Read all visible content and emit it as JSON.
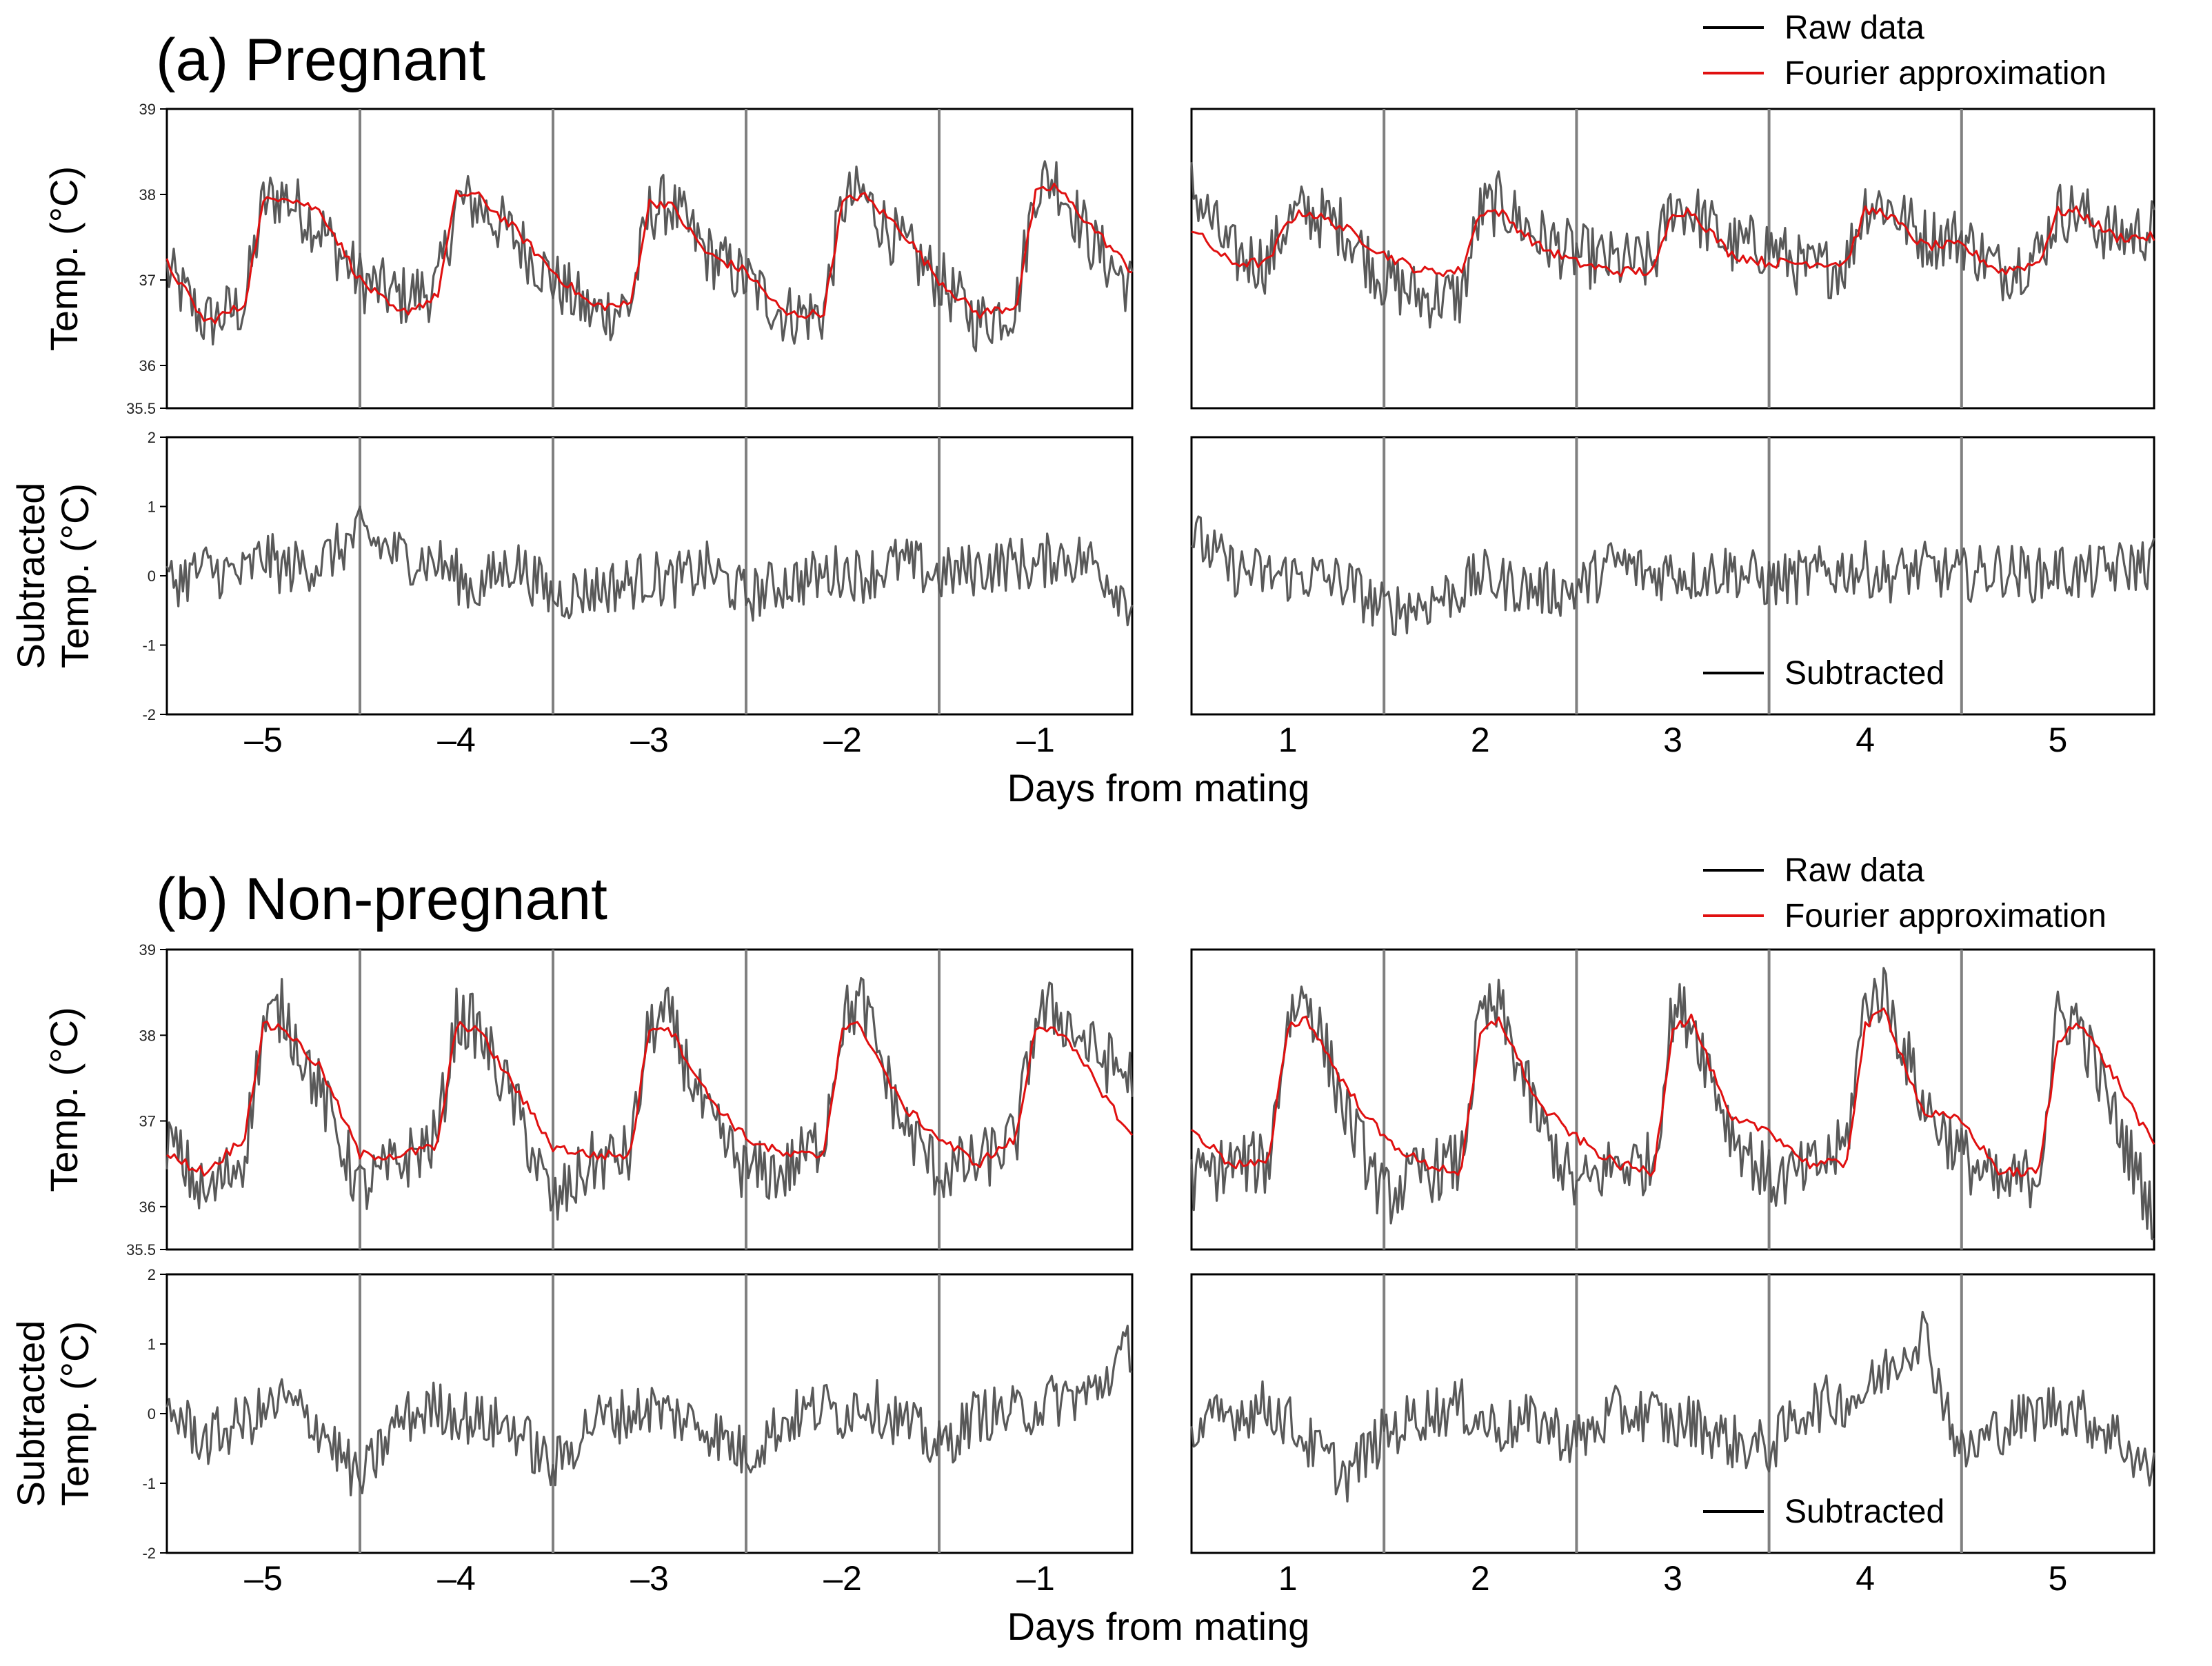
{
  "chart_data": [
    {
      "panel": "a",
      "title": "(a) Pregnant",
      "type": "line",
      "xlabel": "Days from mating",
      "x_ticks_pre": [
        "–5",
        "–4",
        "–3",
        "–2",
        "–1"
      ],
      "x_ticks_post": [
        "1",
        "2",
        "3",
        "4",
        "5"
      ],
      "legend_top": [
        "Raw data",
        "Fourier approximation"
      ],
      "legend_bottom": [
        "Subtracted"
      ],
      "legend_position": "top-right",
      "colors": {
        "raw": "#595959",
        "fourier": "#e01010",
        "subtracted": "#595959",
        "divider": "#808080"
      },
      "top": {
        "ylabel": "Temp. (°C)",
        "ylim": [
          35.5,
          39
        ],
        "yticks": [
          "35.5",
          "36",
          "37",
          "38",
          "39"
        ],
        "series": [
          {
            "name": "Raw data",
            "segment": "pre",
            "x": [
              -5.5,
              -5.3,
              -5.1,
              -5.0,
              -4.9,
              -4.7,
              -4.5,
              -4.3,
              -4.1,
              -4.0,
              -3.9,
              -3.7,
              -3.5,
              -3.3,
              -3.1,
              -3.0,
              -2.9,
              -2.7,
              -2.5,
              -2.3,
              -2.1,
              -2.0,
              -1.9,
              -1.7,
              -1.5,
              -1.3,
              -1.1,
              -1.0,
              -0.9,
              -0.7,
              -0.5
            ],
            "y": [
              37.1,
              36.5,
              36.7,
              37.9,
              38.0,
              37.6,
              37.0,
              36.8,
              36.9,
              37.9,
              37.9,
              37.5,
              37.0,
              36.6,
              36.7,
              37.8,
              37.9,
              37.3,
              37.0,
              36.6,
              36.6,
              37.9,
              38.0,
              37.4,
              37.0,
              36.5,
              36.7,
              38.1,
              38.2,
              37.4,
              36.9
            ]
          },
          {
            "name": "Fourier approximation",
            "segment": "pre",
            "x": [
              -5.5,
              -5.3,
              -5.1,
              -5.0,
              -4.9,
              -4.7,
              -4.5,
              -4.3,
              -4.1,
              -4.0,
              -3.9,
              -3.7,
              -3.5,
              -3.3,
              -3.1,
              -3.0,
              -2.9,
              -2.7,
              -2.5,
              -2.3,
              -2.1,
              -2.0,
              -1.9,
              -1.7,
              -1.5,
              -1.3,
              -1.1,
              -1.0,
              -0.9,
              -0.7,
              -0.5
            ],
            "y": [
              37.2,
              36.5,
              36.7,
              37.9,
              38.0,
              37.8,
              37.0,
              36.6,
              36.8,
              38.0,
              38.0,
              37.6,
              37.1,
              36.7,
              36.7,
              37.9,
              37.9,
              37.3,
              37.1,
              36.6,
              36.6,
              37.9,
              38.0,
              37.6,
              37.0,
              36.6,
              36.7,
              38.0,
              38.1,
              37.6,
              37.1
            ]
          },
          {
            "name": "Raw data",
            "segment": "post",
            "x": [
              0.5,
              0.7,
              0.9,
              1.0,
              1.1,
              1.3,
              1.5,
              1.7,
              1.9,
              2.0,
              2.1,
              2.3,
              2.5,
              2.7,
              2.9,
              3.0,
              3.1,
              3.3,
              3.5,
              3.7,
              3.9,
              4.0,
              4.1,
              4.3,
              4.5,
              4.7,
              4.9,
              5.0,
              5.1,
              5.3,
              5.5
            ],
            "y": [
              38.1,
              37.3,
              37.2,
              37.7,
              37.8,
              37.6,
              37.0,
              36.8,
              36.8,
              37.8,
              37.9,
              37.5,
              37.3,
              37.2,
              37.2,
              37.9,
              37.8,
              37.4,
              37.4,
              37.1,
              37.2,
              37.9,
              37.9,
              37.5,
              37.5,
              37.1,
              37.3,
              37.8,
              37.8,
              37.5,
              37.6
            ]
          },
          {
            "name": "Fourier approximation",
            "segment": "post",
            "x": [
              0.5,
              0.7,
              0.9,
              1.0,
              1.1,
              1.3,
              1.5,
              1.7,
              1.9,
              2.0,
              2.1,
              2.3,
              2.5,
              2.7,
              2.9,
              3.0,
              3.1,
              3.3,
              3.5,
              3.7,
              3.9,
              4.0,
              4.1,
              4.3,
              4.5,
              4.7,
              4.9,
              5.0,
              5.1,
              5.3,
              5.5
            ],
            "y": [
              37.6,
              37.2,
              37.2,
              37.7,
              37.8,
              37.6,
              37.3,
              37.1,
              37.1,
              37.8,
              37.8,
              37.4,
              37.2,
              37.1,
              37.1,
              37.8,
              37.8,
              37.3,
              37.2,
              37.2,
              37.2,
              37.8,
              37.8,
              37.4,
              37.4,
              37.1,
              37.2,
              37.8,
              37.8,
              37.5,
              37.5
            ]
          }
        ]
      },
      "bottom": {
        "ylabel": "Subtracted Temp. (°C)",
        "ylim": [
          -2,
          2
        ],
        "yticks": [
          "-2",
          "-1",
          "0",
          "1",
          "2"
        ],
        "series": [
          {
            "name": "Subtracted",
            "segment": "pre",
            "x": [
              -5.5,
              -5.3,
              -5.1,
              -5.0,
              -4.9,
              -4.7,
              -4.5,
              -4.3,
              -4.1,
              -4.0,
              -3.9,
              -3.7,
              -3.5,
              -3.3,
              -3.1,
              -3.0,
              -2.9,
              -2.7,
              -2.5,
              -2.3,
              -2.1,
              -2.0,
              -1.9,
              -1.7,
              -1.5,
              -1.3,
              -1.1,
              -1.0,
              -0.9,
              -0.7,
              -0.5
            ],
            "y": [
              -0.1,
              0.1,
              0.0,
              0.3,
              0.1,
              0.2,
              0.6,
              0.3,
              0.2,
              0.0,
              -0.2,
              0.2,
              -0.3,
              -0.2,
              -0.1,
              0.0,
              -0.1,
              0.1,
              -0.3,
              -0.1,
              0.0,
              0.1,
              0.0,
              0.2,
              0.0,
              0.1,
              0.2,
              0.1,
              0.3,
              0.2,
              -0.4
            ]
          }
        ]
      },
      "bottom_post": {
        "series": [
          {
            "name": "Subtracted",
            "segment": "post",
            "x": [
              0.5,
              0.7,
              0.9,
              1.0,
              1.1,
              1.3,
              1.5,
              1.7,
              1.9,
              2.0,
              2.1,
              2.3,
              2.5,
              2.7,
              2.9,
              3.0,
              3.1,
              3.3,
              3.5,
              3.7,
              3.9,
              4.0,
              4.1,
              4.3,
              4.5,
              4.7,
              4.9,
              5.0,
              5.1,
              5.3,
              5.5
            ],
            "y": [
              0.6,
              0.1,
              0.0,
              0.0,
              0.0,
              -0.1,
              -0.5,
              -0.4,
              -0.2,
              0.0,
              -0.1,
              -0.2,
              -0.2,
              0.2,
              0.0,
              0.1,
              0.0,
              0.1,
              -0.1,
              0.0,
              0.1,
              0.1,
              0.0,
              0.1,
              0.0,
              0.1,
              0.0,
              0.1,
              0.0,
              0.1,
              0.2
            ]
          }
        ]
      }
    },
    {
      "panel": "b",
      "title": "(b) Non-pregnant",
      "type": "line",
      "xlabel": "Days from mating",
      "x_ticks_pre": [
        "–5",
        "–4",
        "–3",
        "–2",
        "–1"
      ],
      "x_ticks_post": [
        "1",
        "2",
        "3",
        "4",
        "5"
      ],
      "legend_top": [
        "Raw data",
        "Fourier approximation"
      ],
      "legend_bottom": [
        "Subtracted"
      ],
      "legend_position": "top-right",
      "top": {
        "ylabel": "Temp. (°C)",
        "ylim": [
          35.5,
          39
        ],
        "yticks": [
          "35.5",
          "36",
          "37",
          "38",
          "39"
        ],
        "series": [
          {
            "name": "Raw data",
            "segment": "pre",
            "x": [
              -5.5,
              -5.3,
              -5.1,
              -5.0,
              -4.9,
              -4.7,
              -4.5,
              -4.3,
              -4.1,
              -4.0,
              -3.9,
              -3.7,
              -3.5,
              -3.3,
              -3.1,
              -3.0,
              -2.9,
              -2.7,
              -2.5,
              -2.3,
              -2.1,
              -2.0,
              -1.9,
              -1.7,
              -1.5,
              -1.3,
              -1.1,
              -1.0,
              -0.9,
              -0.7,
              -0.5
            ],
            "y": [
              36.8,
              36.1,
              36.6,
              38.1,
              38.3,
              37.3,
              36.2,
              36.5,
              36.8,
              38.2,
              38.1,
              37.2,
              36.0,
              36.5,
              36.6,
              38.1,
              38.2,
              37.0,
              36.4,
              36.4,
              36.8,
              38.2,
              38.4,
              37.0,
              36.4,
              36.5,
              36.8,
              38.2,
              38.3,
              37.8,
              37.5
            ]
          },
          {
            "name": "Fourier approximation",
            "segment": "pre",
            "x": [
              -5.5,
              -5.3,
              -5.1,
              -5.0,
              -4.9,
              -4.7,
              -4.5,
              -4.3,
              -4.1,
              -4.0,
              -3.9,
              -3.7,
              -3.5,
              -3.3,
              -3.1,
              -3.0,
              -2.9,
              -2.7,
              -2.5,
              -2.3,
              -2.1,
              -2.0,
              -1.9,
              -1.7,
              -1.5,
              -1.3,
              -1.1,
              -1.0,
              -0.9,
              -0.7,
              -0.5
            ],
            "y": [
              36.6,
              36.4,
              36.8,
              38.1,
              38.1,
              37.6,
              36.6,
              36.6,
              36.7,
              38.1,
              38.1,
              37.4,
              36.7,
              36.6,
              36.6,
              38.1,
              38.1,
              37.3,
              36.8,
              36.6,
              36.6,
              38.1,
              38.1,
              37.2,
              36.8,
              36.5,
              36.8,
              38.1,
              38.1,
              37.5,
              36.8
            ]
          },
          {
            "name": "Raw data",
            "segment": "post",
            "x": [
              0.5,
              0.7,
              0.9,
              1.0,
              1.1,
              1.3,
              1.5,
              1.7,
              1.9,
              2.0,
              2.1,
              2.3,
              2.5,
              2.7,
              2.9,
              3.0,
              3.1,
              3.3,
              3.5,
              3.7,
              3.9,
              4.0,
              4.1,
              4.3,
              4.5,
              4.7,
              4.9,
              5.0,
              5.1,
              5.3,
              5.5
            ],
            "y": [
              36.3,
              36.5,
              36.5,
              38.2,
              38.5,
              37.1,
              36.1,
              36.4,
              36.5,
              38.2,
              38.3,
              37.0,
              36.2,
              36.5,
              36.5,
              38.3,
              38.2,
              36.9,
              36.3,
              36.4,
              36.7,
              38.4,
              38.5,
              37.2,
              36.6,
              36.2,
              36.4,
              38.2,
              38.2,
              37.0,
              35.9
            ]
          },
          {
            "name": "Fourier approximation",
            "segment": "post",
            "x": [
              0.5,
              0.7,
              0.9,
              1.0,
              1.1,
              1.3,
              1.5,
              1.7,
              1.9,
              2.0,
              2.1,
              2.3,
              2.5,
              2.7,
              2.9,
              3.0,
              3.1,
              3.3,
              3.5,
              3.7,
              3.9,
              4.0,
              4.1,
              4.3,
              4.5,
              4.7,
              4.9,
              5.0,
              5.1,
              5.3,
              5.5
            ],
            "y": [
              36.9,
              36.5,
              36.5,
              38.1,
              38.2,
              37.4,
              36.8,
              36.5,
              36.4,
              38.0,
              38.2,
              37.2,
              36.8,
              36.5,
              36.4,
              38.1,
              38.2,
              37.0,
              36.9,
              36.5,
              36.5,
              38.1,
              38.3,
              37.1,
              37.0,
              36.4,
              36.4,
              37.9,
              38.2,
              37.5,
              36.7
            ]
          }
        ]
      },
      "bottom": {
        "ylabel": "Subtracted Temp. (°C)",
        "ylim": [
          -2,
          2
        ],
        "yticks": [
          "-2",
          "-1",
          "0",
          "1",
          "2"
        ],
        "series": [
          {
            "name": "Subtracted",
            "segment": "pre",
            "x": [
              -5.5,
              -5.3,
              -5.1,
              -5.0,
              -4.9,
              -4.7,
              -4.5,
              -4.3,
              -4.1,
              -4.0,
              -3.9,
              -3.7,
              -3.5,
              -3.3,
              -3.1,
              -3.0,
              -2.9,
              -2.7,
              -2.5,
              -2.3,
              -2.1,
              -2.0,
              -1.9,
              -1.7,
              -1.5,
              -1.3,
              -1.1,
              -1.0,
              -0.9,
              -0.7,
              -0.5
            ],
            "y": [
              0.1,
              -0.4,
              -0.1,
              0.0,
              0.2,
              -0.2,
              -1.0,
              -0.1,
              0.1,
              0.0,
              -0.1,
              -0.2,
              -0.8,
              -0.1,
              0.0,
              0.1,
              0.0,
              -0.2,
              -0.6,
              -0.1,
              0.1,
              0.0,
              0.2,
              -0.1,
              -0.5,
              0.0,
              0.0,
              0.1,
              0.2,
              0.3,
              1.0
            ]
          }
        ]
      },
      "bottom_post": {
        "series": [
          {
            "name": "Subtracted",
            "segment": "post",
            "x": [
              0.5,
              0.7,
              0.9,
              1.0,
              1.1,
              1.3,
              1.5,
              1.7,
              1.9,
              2.0,
              2.1,
              2.3,
              2.5,
              2.7,
              2.9,
              3.0,
              3.1,
              3.3,
              3.5,
              3.7,
              3.9,
              4.0,
              4.1,
              4.3,
              4.5,
              4.7,
              4.9,
              5.0,
              5.1,
              5.3,
              5.5
            ],
            "y": [
              -0.3,
              0.0,
              0.1,
              -0.1,
              -0.4,
              -0.9,
              -0.3,
              0.0,
              0.1,
              -0.1,
              -0.2,
              -0.1,
              -0.4,
              0.0,
              0.0,
              -0.2,
              -0.1,
              -0.4,
              -0.5,
              0.1,
              0.2,
              0.3,
              0.6,
              1.2,
              -0.6,
              -0.2,
              0.0,
              0.1,
              0.0,
              -0.3,
              -0.9
            ]
          }
        ]
      }
    }
  ]
}
